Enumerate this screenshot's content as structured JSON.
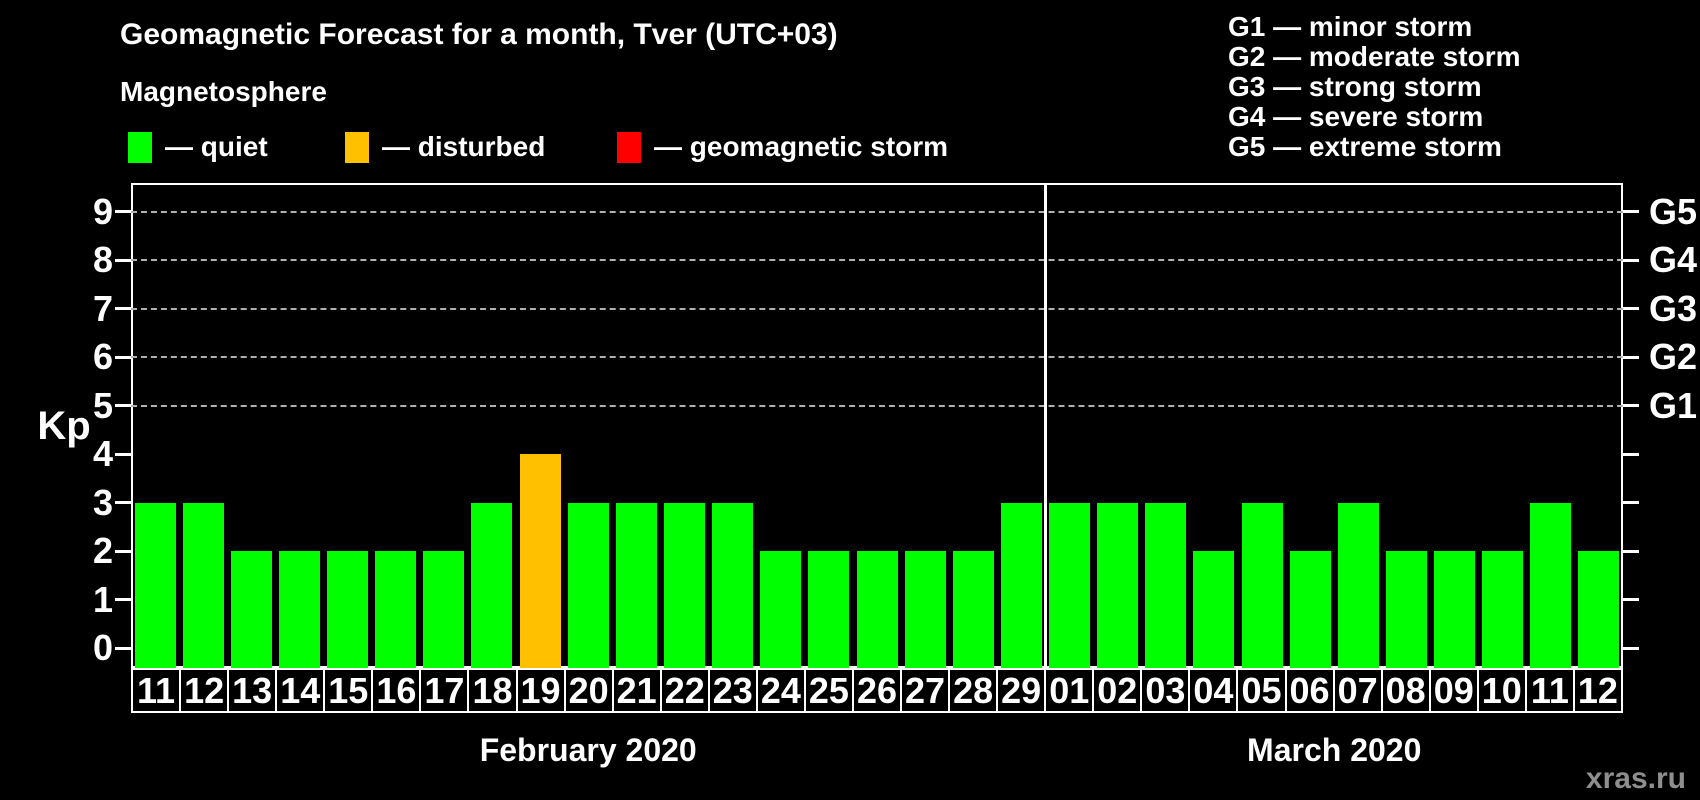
{
  "title": "Geomagnetic Forecast for a month, Tver (UTC+03)",
  "subtitle": "Magnetosphere",
  "condition_legend": [
    {
      "id": "quiet",
      "label": "— quiet",
      "color": "#00ff00"
    },
    {
      "id": "disturbed",
      "label": "— disturbed",
      "color": "#ffc000"
    },
    {
      "id": "storm",
      "label": "— geomagnetic storm",
      "color": "#ff0000"
    }
  ],
  "storm_scale_legend": [
    "G1 — minor storm",
    "G2 — moderate storm",
    "G3 — strong storm",
    "G4 — severe storm",
    "G5 — extreme storm"
  ],
  "watermark": "xras.ru",
  "chart_data": {
    "type": "bar",
    "ylabel": "Kp",
    "ylim": [
      0,
      9
    ],
    "yticks": [
      0,
      1,
      2,
      3,
      4,
      5,
      6,
      7,
      8,
      9
    ],
    "gridlines_at": [
      5,
      6,
      7,
      8,
      9
    ],
    "grid": "dashed horizontal at storm levels only",
    "legend_position": "top",
    "right_axis": [
      {
        "kp": 5,
        "label": "G1"
      },
      {
        "kp": 6,
        "label": "G2"
      },
      {
        "kp": 7,
        "label": "G3"
      },
      {
        "kp": 8,
        "label": "G4"
      },
      {
        "kp": 9,
        "label": "G5"
      }
    ],
    "bar_colors": {
      "quiet": "#00ff00",
      "disturbed": "#ffc000",
      "storm": "#ff0000"
    },
    "months": [
      {
        "label": "February 2020",
        "bars": [
          {
            "day": "11",
            "kp": 3,
            "state": "quiet"
          },
          {
            "day": "12",
            "kp": 3,
            "state": "quiet"
          },
          {
            "day": "13",
            "kp": 2,
            "state": "quiet"
          },
          {
            "day": "14",
            "kp": 2,
            "state": "quiet"
          },
          {
            "day": "15",
            "kp": 2,
            "state": "quiet"
          },
          {
            "day": "16",
            "kp": 2,
            "state": "quiet"
          },
          {
            "day": "17",
            "kp": 2,
            "state": "quiet"
          },
          {
            "day": "18",
            "kp": 3,
            "state": "quiet"
          },
          {
            "day": "19",
            "kp": 4,
            "state": "disturbed"
          },
          {
            "day": "20",
            "kp": 3,
            "state": "quiet"
          },
          {
            "day": "21",
            "kp": 3,
            "state": "quiet"
          },
          {
            "day": "22",
            "kp": 3,
            "state": "quiet"
          },
          {
            "day": "23",
            "kp": 3,
            "state": "quiet"
          },
          {
            "day": "24",
            "kp": 2,
            "state": "quiet"
          },
          {
            "day": "25",
            "kp": 2,
            "state": "quiet"
          },
          {
            "day": "26",
            "kp": 2,
            "state": "quiet"
          },
          {
            "day": "27",
            "kp": 2,
            "state": "quiet"
          },
          {
            "day": "28",
            "kp": 2,
            "state": "quiet"
          },
          {
            "day": "29",
            "kp": 3,
            "state": "quiet"
          }
        ]
      },
      {
        "label": "March 2020",
        "bars": [
          {
            "day": "01",
            "kp": 3,
            "state": "quiet"
          },
          {
            "day": "02",
            "kp": 3,
            "state": "quiet"
          },
          {
            "day": "03",
            "kp": 3,
            "state": "quiet"
          },
          {
            "day": "04",
            "kp": 2,
            "state": "quiet"
          },
          {
            "day": "05",
            "kp": 3,
            "state": "quiet"
          },
          {
            "day": "06",
            "kp": 2,
            "state": "quiet"
          },
          {
            "day": "07",
            "kp": 3,
            "state": "quiet"
          },
          {
            "day": "08",
            "kp": 2,
            "state": "quiet"
          },
          {
            "day": "09",
            "kp": 2,
            "state": "quiet"
          },
          {
            "day": "10",
            "kp": 2,
            "state": "quiet"
          },
          {
            "day": "11",
            "kp": 3,
            "state": "quiet"
          },
          {
            "day": "12",
            "kp": 2,
            "state": "quiet"
          }
        ]
      }
    ]
  }
}
